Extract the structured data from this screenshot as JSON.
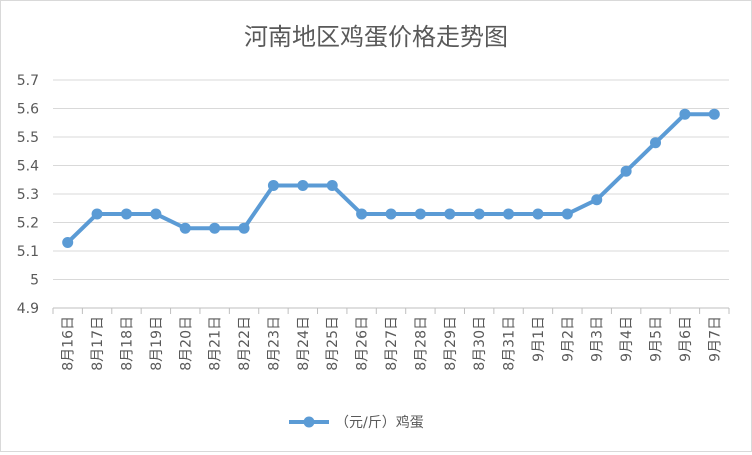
{
  "chart_data": {
    "type": "line",
    "title": "河南地区鸡蛋价格走势图",
    "xlabel": "",
    "ylabel": "",
    "categories": [
      "8月16日",
      "8月17日",
      "8月18日",
      "8月19日",
      "8月20日",
      "8月21日",
      "8月22日",
      "8月23日",
      "8月24日",
      "8月25日",
      "8月26日",
      "8月27日",
      "8月28日",
      "8月29日",
      "8月30日",
      "8月31日",
      "9月1日",
      "9月2日",
      "9月3日",
      "9月4日",
      "9月5日",
      "9月6日",
      "9月7日"
    ],
    "series": [
      {
        "name": "（元/斤）鸡蛋",
        "color": "#5b9bd5",
        "values": [
          5.13,
          5.23,
          5.23,
          5.23,
          5.18,
          5.18,
          5.18,
          5.33,
          5.33,
          5.33,
          5.23,
          5.23,
          5.23,
          5.23,
          5.23,
          5.23,
          5.23,
          5.23,
          5.28,
          5.38,
          5.48,
          5.58,
          5.58
        ]
      }
    ],
    "ylim": [
      4.9,
      5.7
    ],
    "yticks": [
      "4.9",
      "5",
      "5.1",
      "5.2",
      "5.3",
      "5.4",
      "5.5",
      "5.6",
      "5.7"
    ],
    "grid": true,
    "legend": "bottom"
  }
}
